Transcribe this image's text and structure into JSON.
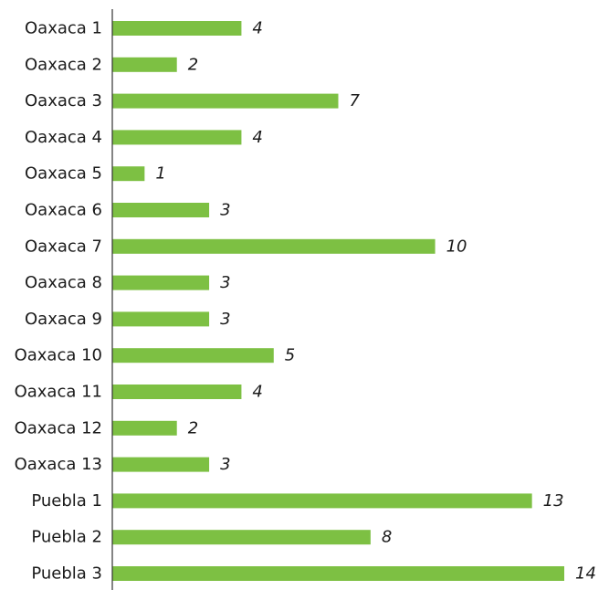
{
  "chart_data": {
    "type": "bar",
    "orientation": "horizontal",
    "categories": [
      "Oaxaca 1",
      "Oaxaca 2",
      "Oaxaca 3",
      "Oaxaca 4",
      "Oaxaca 5",
      "Oaxaca 6",
      "Oaxaca 7",
      "Oaxaca 8",
      "Oaxaca 9",
      "Oaxaca 10",
      "Oaxaca 11",
      "Oaxaca 12",
      "Oaxaca 13",
      "Puebla 1",
      "Puebla 2",
      "Puebla 3"
    ],
    "values": [
      4,
      2,
      7,
      4,
      1,
      3,
      10,
      3,
      3,
      5,
      4,
      2,
      3,
      13,
      8,
      14
    ],
    "value_labels": [
      "4",
      "2",
      "7",
      "4",
      "1",
      "3",
      "10",
      "3",
      "3",
      "5",
      "4",
      "2",
      "3",
      "13",
      "8",
      "14"
    ],
    "title": "",
    "xlabel": "",
    "ylabel": "",
    "xlim": [
      0,
      14
    ],
    "grid": false,
    "legend": "none",
    "bar_color": "#7dc043",
    "axis_color": "#333333"
  }
}
